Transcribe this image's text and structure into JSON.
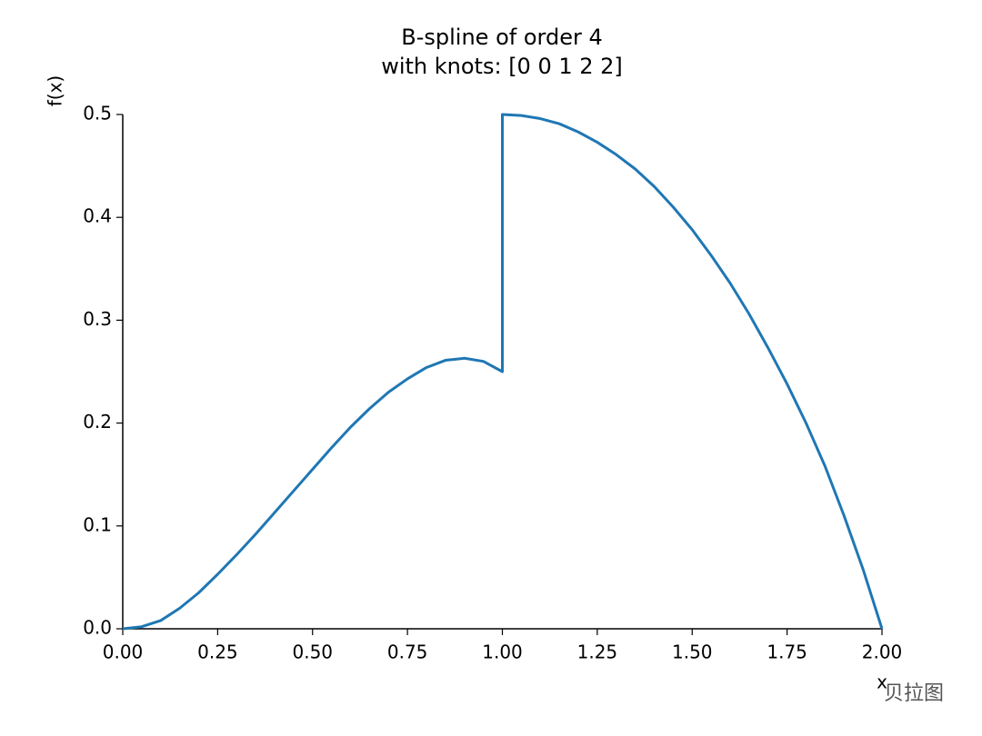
{
  "chart_data": {
    "type": "line",
    "title": "B-spline of order 4",
    "subtitle": "with knots: [0 0 1 2 2]",
    "x_label": "x",
    "y_label": "f(x)",
    "x": [
      0,
      0.05,
      0.1,
      0.15,
      0.2,
      0.25,
      0.3,
      0.35,
      0.4,
      0.45,
      0.5,
      0.55,
      0.6,
      0.65,
      0.7,
      0.75,
      0.8,
      0.85,
      0.9,
      0.95,
      1.0,
      1.0,
      1.05,
      1.1,
      1.15,
      1.2,
      1.25,
      1.3,
      1.35,
      1.4,
      1.45,
      1.5,
      1.55,
      1.6,
      1.65,
      1.7,
      1.75,
      1.8,
      1.85,
      1.9,
      1.95,
      2.0
    ],
    "values": [
      0,
      0.002,
      0.008,
      0.02,
      0.035,
      0.053,
      0.072,
      0.092,
      0.113,
      0.134,
      0.155,
      0.176,
      0.196,
      0.214,
      0.23,
      0.243,
      0.254,
      0.261,
      0.263,
      0.26,
      0.25,
      0.5,
      0.499,
      0.496,
      0.491,
      0.483,
      0.473,
      0.461,
      0.447,
      0.43,
      0.41,
      0.388,
      0.363,
      0.336,
      0.306,
      0.273,
      0.238,
      0.2,
      0.158,
      0.11,
      0.058,
      0
    ],
    "color": "#1f77b4",
    "xlim": [
      0,
      2
    ],
    "ylim": [
      0,
      0.5
    ],
    "xticks": [
      {
        "value": 0,
        "label": "0.00"
      },
      {
        "value": 0.25,
        "label": "0.25"
      },
      {
        "value": 0.5,
        "label": "0.50"
      },
      {
        "value": 0.75,
        "label": "0.75"
      },
      {
        "value": 1,
        "label": "1.00"
      },
      {
        "value": 1.25,
        "label": "1.25"
      },
      {
        "value": 1.5,
        "label": "1.50"
      },
      {
        "value": 1.75,
        "label": "1.75"
      },
      {
        "value": 2,
        "label": "2.00"
      }
    ],
    "yticks": [
      {
        "value": 0,
        "label": "0.0"
      },
      0.1,
      0.2,
      0.3,
      0.4,
      0.5
    ],
    "grid": false
  },
  "watermark": "贝拉图"
}
